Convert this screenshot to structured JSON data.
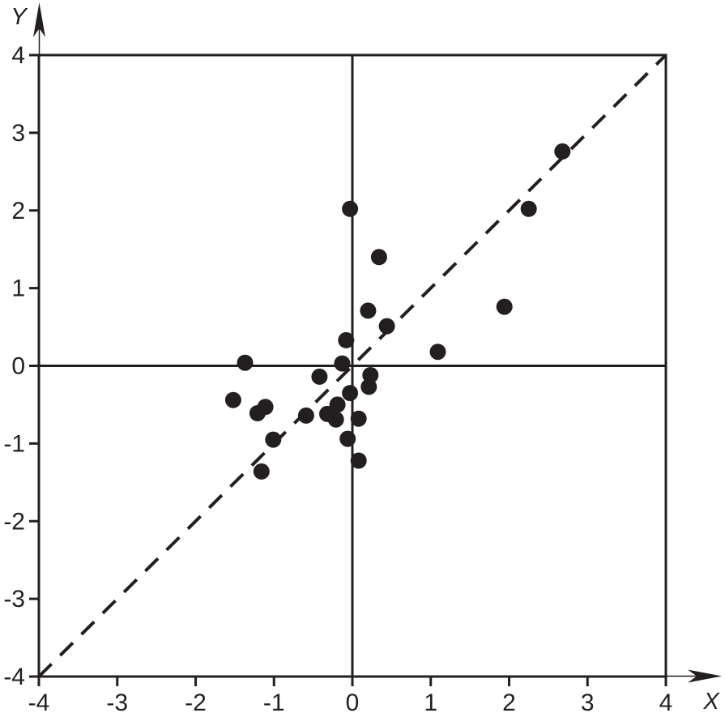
{
  "chart_data": {
    "type": "scatter",
    "title": "",
    "xlabel": "X",
    "ylabel": "Y",
    "xlim": [
      -4,
      4
    ],
    "ylim": [
      -4,
      4
    ],
    "x_ticks": [
      -4,
      -3,
      -2,
      -1,
      0,
      1,
      2,
      3,
      4
    ],
    "y_ticks": [
      4,
      3,
      2,
      1,
      0,
      -1,
      -2,
      -3,
      -4
    ],
    "grid": false,
    "legend": false,
    "boxed_frame": true,
    "axis_color": "#231f20",
    "marker_color": "#231f20",
    "background_color": "#ffffff",
    "identity_line": {
      "style": "dashed",
      "from": [
        -4,
        -4
      ],
      "to": [
        4,
        4
      ]
    },
    "points": [
      [
        -0.03,
        2.02
      ],
      [
        0.34,
        1.4
      ],
      [
        0.2,
        0.71
      ],
      [
        0.44,
        0.51
      ],
      [
        -0.08,
        0.33
      ],
      [
        2.68,
        2.76
      ],
      [
        2.25,
        2.02
      ],
      [
        1.94,
        0.76
      ],
      [
        1.09,
        0.18
      ],
      [
        -1.37,
        0.04
      ],
      [
        -0.13,
        0.03
      ],
      [
        0.23,
        -0.12
      ],
      [
        0.21,
        -0.27
      ],
      [
        -0.42,
        -0.14
      ],
      [
        -0.03,
        -0.35
      ],
      [
        -0.19,
        -0.5
      ],
      [
        -0.32,
        -0.62
      ],
      [
        -0.21,
        -0.69
      ],
      [
        0.08,
        -0.68
      ],
      [
        -0.59,
        -0.64
      ],
      [
        -0.06,
        -0.94
      ],
      [
        0.08,
        -1.22
      ],
      [
        -1.52,
        -0.44
      ],
      [
        -1.11,
        -0.53
      ],
      [
        -1.21,
        -0.61
      ],
      [
        -1.01,
        -0.95
      ],
      [
        -1.16,
        -1.36
      ]
    ]
  }
}
